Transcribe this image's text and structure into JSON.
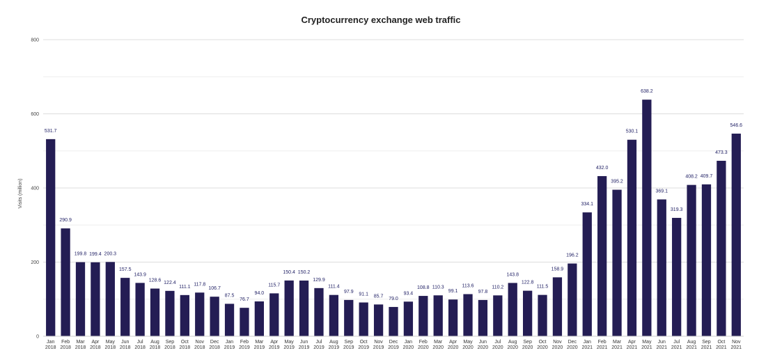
{
  "chart_data": {
    "type": "bar",
    "title": "Cryptocurrency exchange web traffic",
    "xlabel": "",
    "ylabel": "Visits (million)",
    "ylim": [
      0,
      800
    ],
    "yticks": [
      0,
      200,
      400,
      600,
      800
    ],
    "grid": true,
    "legend": "none",
    "bar_color": "#241d54",
    "categories": [
      "Jan 2018",
      "Feb 2018",
      "Mar 2018",
      "Apr 2018",
      "May 2018",
      "Jun 2018",
      "Jul 2018",
      "Aug 2018",
      "Sep 2018",
      "Oct 2018",
      "Nov 2018",
      "Dec 2018",
      "Jan 2019",
      "Feb 2019",
      "Mar 2019",
      "Apr 2019",
      "May 2019",
      "Jun 2019",
      "Jul 2019",
      "Aug 2019",
      "Sep 2019",
      "Oct 2019",
      "Nov 2019",
      "Dec 2019",
      "Jan 2020",
      "Feb 2020",
      "Mar 2020",
      "Apr 2020",
      "May 2020",
      "Jun 2020",
      "Jul 2020",
      "Aug 2020",
      "Sep 2020",
      "Oct 2020",
      "Nov 2020",
      "Dec 2020",
      "Jan 2021",
      "Feb 2021",
      "Mar 2021",
      "Apr 2021",
      "May 2021",
      "Jun 2021",
      "Jul 2021",
      "Aug 2021",
      "Sep 2021",
      "Oct 2021",
      "Nov 2021"
    ],
    "values": [
      531.7,
      290.9,
      199.8,
      199.4,
      200.3,
      157.5,
      143.9,
      128.6,
      122.4,
      111.1,
      117.8,
      106.7,
      87.5,
      76.7,
      94.0,
      115.7,
      150.4,
      150.2,
      129.9,
      111.4,
      97.9,
      91.1,
      85.7,
      79.0,
      93.4,
      108.8,
      110.3,
      99.1,
      113.6,
      97.8,
      110.2,
      143.8,
      122.8,
      111.5,
      158.9,
      196.2,
      334.1,
      432.0,
      395.2,
      530.1,
      638.2,
      369.1,
      319.3,
      408.2,
      409.7,
      473.3,
      546.6
    ],
    "value_labels": [
      "531.7",
      "290.9",
      "199.8",
      "199.4",
      "200.3",
      "157.5",
      "143.9",
      "128.6",
      "122.4",
      "111.1",
      "117.8",
      "106.7",
      "87.5",
      "76.7",
      "94.0",
      "115.7",
      "150.4",
      "150.2",
      "129.9",
      "111.4",
      "97.9",
      "91.1",
      "85.7",
      "79.0",
      "93.4",
      "108.8",
      "110.3",
      "99.1",
      "113.6",
      "97.8",
      "110.2",
      "143.8",
      "122.8",
      "111.5",
      "158.9",
      "196.2",
      "334.1",
      "432.0",
      "395.2",
      "530.1",
      "638.2",
      "369.1",
      "319.3",
      "408.2",
      "409.7",
      "473.3",
      "546.6"
    ]
  }
}
